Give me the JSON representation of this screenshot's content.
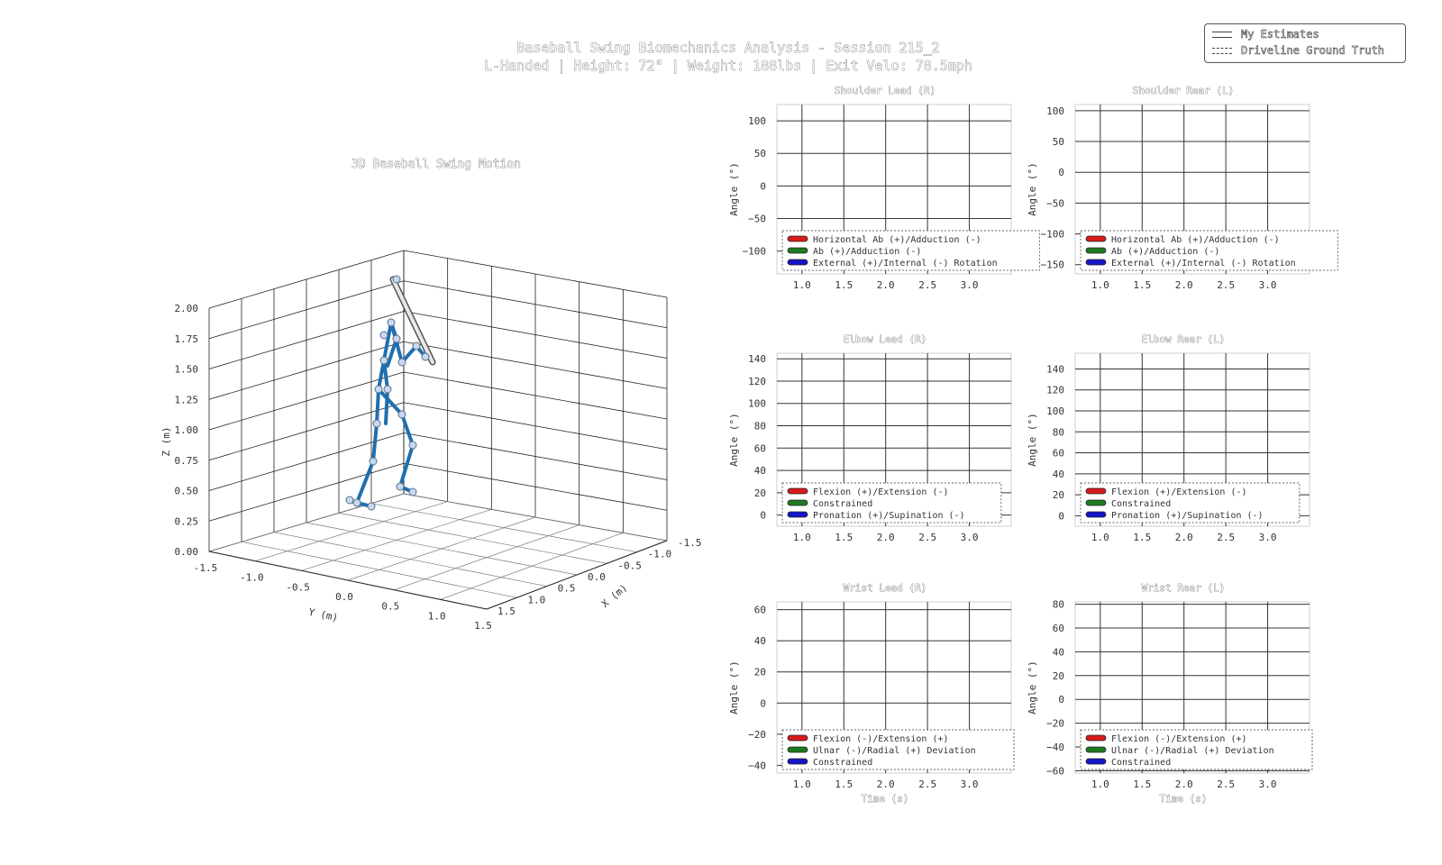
{
  "figure": {
    "title_line1": "Baseball Swing Biomechanics Analysis - Session 215_2",
    "title_line2": "L-Handed | Height: 72\" | Weight: 188lbs | Exit Velo: 78.5mph"
  },
  "legend": {
    "entries": [
      {
        "label": "My Estimates",
        "style": "solid"
      },
      {
        "label": "Driveline Ground Truth",
        "style": "dashed"
      }
    ]
  },
  "colors": {
    "red": "#d81b1b",
    "green": "#1e7a1e",
    "blue": "#1515c8",
    "skeleton": "#1f6fae",
    "joint": "#c8d8ee"
  },
  "chart_data": [
    {
      "id": "swing3d",
      "type": "scatter",
      "title": "3D Baseball Swing Motion",
      "xlabel": "X (m)",
      "ylabel": "Y (m)",
      "zlabel": "Z (m)",
      "xlim": [
        -1.5,
        1.5
      ],
      "ylim": [
        -1.5,
        1.5
      ],
      "zlim": [
        0,
        2.0
      ],
      "x_ticks": [
        "-1.5",
        "-1.0",
        "-0.5",
        "0.0",
        "0.5",
        "1.0",
        "1.5"
      ],
      "y_ticks": [
        "-1.5",
        "-1.0",
        "-0.5",
        "0.0",
        "0.5",
        "1.0",
        "1.5"
      ],
      "z_ticks": [
        "0.00",
        "0.25",
        "0.50",
        "0.75",
        "1.00",
        "1.25",
        "1.50",
        "1.75",
        "2.00"
      ],
      "grid": true
    },
    {
      "id": "shoulder_lead",
      "type": "line",
      "title": "Shoulder Lead (R)",
      "ylabel": "Angle (°)",
      "xlabel": "",
      "xlim": [
        0.7,
        3.5
      ],
      "ylim": [
        -135,
        125
      ],
      "x_ticks": [
        1.0,
        1.5,
        2.0,
        2.5,
        3.0
      ],
      "y_ticks": [
        -100,
        -50,
        0,
        50,
        100
      ],
      "grid": true,
      "series": [
        {
          "name": "Horizontal Ab (+)/Adduction (-)",
          "color": "red",
          "values": []
        },
        {
          "name": "Ab (+)/Adduction (-)",
          "color": "green",
          "values": []
        },
        {
          "name": "External (+)/Internal (-) Rotation",
          "color": "blue",
          "values": []
        }
      ]
    },
    {
      "id": "shoulder_rear",
      "type": "line",
      "title": "Shoulder Rear (L)",
      "ylabel": "Angle (°)",
      "xlabel": "",
      "xlim": [
        0.7,
        3.5
      ],
      "ylim": [
        -165,
        110
      ],
      "x_ticks": [
        1.0,
        1.5,
        2.0,
        2.5,
        3.0
      ],
      "y_ticks": [
        -150,
        -100,
        -50,
        0,
        50,
        100
      ],
      "grid": true,
      "series": [
        {
          "name": "Horizontal Ab (+)/Adduction (-)",
          "color": "red",
          "values": []
        },
        {
          "name": "Ab (+)/Adduction (-)",
          "color": "green",
          "values": []
        },
        {
          "name": "External (+)/Internal (-) Rotation",
          "color": "blue",
          "values": []
        }
      ]
    },
    {
      "id": "elbow_lead",
      "type": "line",
      "title": "Elbow Lead (R)",
      "ylabel": "Angle (°)",
      "xlabel": "",
      "xlim": [
        0.7,
        3.5
      ],
      "ylim": [
        -10,
        145
      ],
      "x_ticks": [
        1.0,
        1.5,
        2.0,
        2.5,
        3.0
      ],
      "y_ticks": [
        0,
        20,
        40,
        60,
        80,
        100,
        120,
        140
      ],
      "grid": true,
      "series": [
        {
          "name": "Flexion (+)/Extension (-)",
          "color": "red",
          "values": []
        },
        {
          "name": "Constrained",
          "color": "green",
          "values": []
        },
        {
          "name": "Pronation (+)/Supination (-)",
          "color": "blue",
          "values": []
        }
      ]
    },
    {
      "id": "elbow_rear",
      "type": "line",
      "title": "Elbow Rear (L)",
      "ylabel": "Angle (°)",
      "xlabel": "",
      "xlim": [
        0.7,
        3.5
      ],
      "ylim": [
        -10,
        155
      ],
      "x_ticks": [
        1.0,
        1.5,
        2.0,
        2.5,
        3.0
      ],
      "y_ticks": [
        0,
        20,
        40,
        60,
        80,
        100,
        120,
        140
      ],
      "grid": true,
      "series": [
        {
          "name": "Flexion (+)/Extension (-)",
          "color": "red",
          "values": []
        },
        {
          "name": "Constrained",
          "color": "green",
          "values": []
        },
        {
          "name": "Pronation (+)/Supination (-)",
          "color": "blue",
          "values": []
        }
      ]
    },
    {
      "id": "wrist_lead",
      "type": "line",
      "title": "Wrist Lead (R)",
      "ylabel": "Angle (°)",
      "xlabel": "Time (s)",
      "xlim": [
        0.7,
        3.5
      ],
      "ylim": [
        -45,
        65
      ],
      "x_ticks": [
        1.0,
        1.5,
        2.0,
        2.5,
        3.0
      ],
      "y_ticks": [
        -40,
        -20,
        0,
        20,
        40,
        60
      ],
      "grid": true,
      "series": [
        {
          "name": "Flexion (-)/Extension (+)",
          "color": "red",
          "values": []
        },
        {
          "name": "Ulnar (-)/Radial (+) Deviation",
          "color": "green",
          "values": []
        },
        {
          "name": "Constrained",
          "color": "blue",
          "values": []
        }
      ]
    },
    {
      "id": "wrist_rear",
      "type": "line",
      "title": "Wrist Rear (L)",
      "ylabel": "Angle (°)",
      "xlabel": "Time (s)",
      "xlim": [
        0.7,
        3.5
      ],
      "ylim": [
        -62,
        82
      ],
      "x_ticks": [
        1.0,
        1.5,
        2.0,
        2.5,
        3.0
      ],
      "y_ticks": [
        -60,
        -40,
        -20,
        0,
        20,
        40,
        60,
        80
      ],
      "grid": true,
      "series": [
        {
          "name": "Flexion (-)/Extension (+)",
          "color": "red",
          "values": []
        },
        {
          "name": "Ulnar (-)/Radial (+) Deviation",
          "color": "green",
          "values": []
        },
        {
          "name": "Constrained",
          "color": "blue",
          "values": []
        }
      ]
    }
  ]
}
